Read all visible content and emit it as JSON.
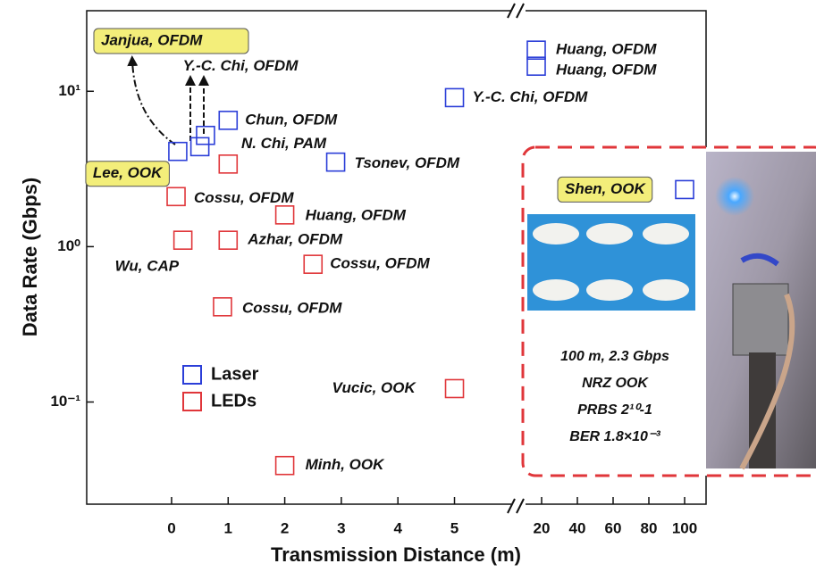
{
  "chart_data": {
    "type": "scatter",
    "y_label": "Data Rate (Gbps)",
    "x_label": "Transmission Distance (m)",
    "log_y": true,
    "ylim": [
      0.022,
      33
    ],
    "yticks": [
      {
        "value": 10,
        "label": "10¹"
      },
      {
        "value": 1,
        "label": "10⁰"
      },
      {
        "value": 0.1,
        "label": "10⁻¹"
      }
    ],
    "x_segments": [
      {
        "xlim": [
          -1.5,
          6.05
        ],
        "xticks": [
          0,
          1,
          2,
          3,
          4,
          5
        ]
      },
      {
        "xlim": [
          12,
          112
        ],
        "xticks": [
          20,
          40,
          60,
          80,
          100
        ]
      }
    ],
    "series": [
      {
        "name": "Laser",
        "color": "#2b3ed8",
        "x": [
          0.11,
          0.5,
          0.6,
          1,
          2.9,
          5,
          17,
          17,
          100
        ],
        "values": [
          4.1,
          4.4,
          5.2,
          6.5,
          3.5,
          9.1,
          18.4,
          14.5,
          2.33
        ],
        "labels": [
          "Lee, OOK",
          "Y.-C. Chi, OFDM",
          "N. Chi, PAM",
          "Chun, OFDM",
          "Tsonev, OFDM",
          "Y.-C. Chi, OFDM",
          "Huang, OFDM",
          "Huang, OFDM",
          "Shen, OOK"
        ]
      },
      {
        "name": "LEDs",
        "color": "#e0363a",
        "x": [
          0.08,
          0.2,
          1,
          1,
          2,
          2.5,
          0.9,
          5,
          2
        ],
        "values": [
          2.1,
          1.1,
          3.4,
          1.1,
          1.6,
          0.77,
          0.41,
          0.122,
          0.039
        ],
        "labels": [
          "Cossu, OFDM",
          "Wu, CAP",
          null,
          "Azhar, OFDM",
          "Huang, OFDM",
          "Cossu, OFDM",
          "Cossu, OFDM",
          "Vucic, OOK",
          "Minh, OOK"
        ]
      }
    ],
    "annotations": [
      {
        "text": "Janjua, OFDM"
      }
    ],
    "inset": {
      "lines": [
        "100 m, 2.3 Gbps",
        "NRZ OOK",
        "PRBS 2¹⁰-1",
        "BER 1.8×10⁻³"
      ]
    }
  }
}
